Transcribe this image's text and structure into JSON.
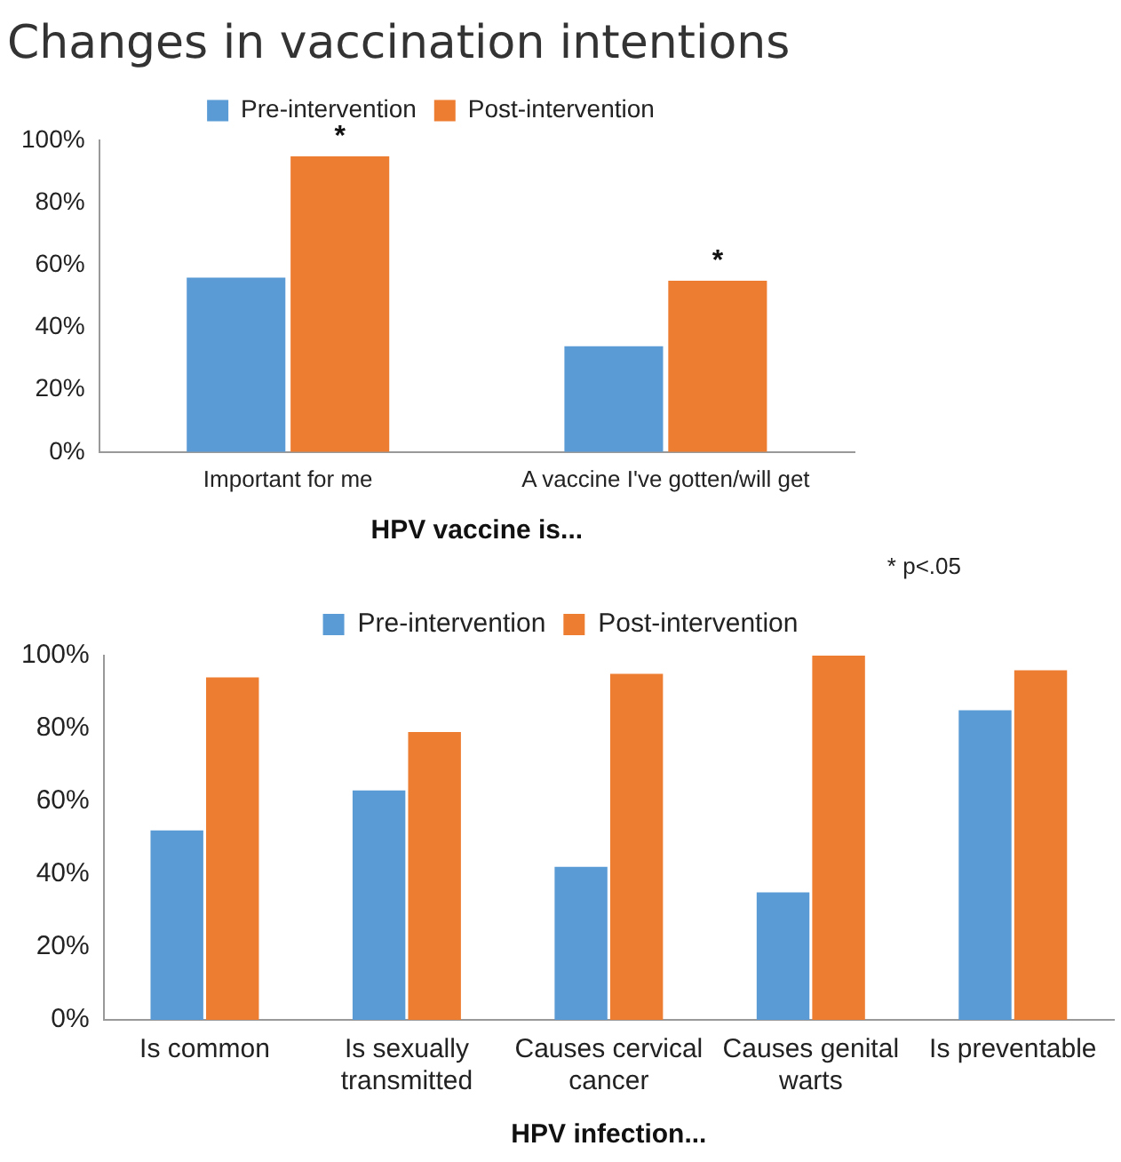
{
  "chart_data": [
    {
      "type": "bar",
      "title": "Changes in vaccination intentions",
      "xlabel": "HPV vaccine is...",
      "categories": [
        "Important for me",
        "A vaccine I've gotten/will get"
      ],
      "series": [
        {
          "name": "Pre-intervention",
          "color": "#5b9bd5",
          "values": [
            56,
            34
          ]
        },
        {
          "name": "Post-intervention",
          "color": "#ed7d31",
          "values": [
            95,
            55
          ]
        }
      ],
      "ylim": [
        0,
        100
      ],
      "yticks": [
        {
          "value": 0,
          "label": "0%"
        },
        {
          "value": 20,
          "label": "20%"
        },
        {
          "value": 40,
          "label": "40%"
        },
        {
          "value": 60,
          "label": "60%"
        },
        {
          "value": 80,
          "label": "80%"
        },
        {
          "value": 100,
          "label": "100%"
        }
      ],
      "grid": false,
      "legend": "top",
      "annotations": [
        {
          "text": "*",
          "x": "Important for me",
          "y": 95
        },
        {
          "text": "*",
          "x": "A vaccine I've gotten/will get",
          "y": 55
        },
        "* p<.05"
      ]
    },
    {
      "type": "bar",
      "xlabel": "HPV infection...",
      "categories": [
        "Is common",
        "Is sexually transmitted",
        "Causes cervical cancer",
        "Causes genital warts",
        "Is preventable"
      ],
      "series": [
        {
          "name": "Pre-intervention",
          "color": "#5b9bd5",
          "values": [
            52,
            63,
            42,
            35,
            85
          ]
        },
        {
          "name": "Post-intervention",
          "color": "#ed7d31",
          "values": [
            94,
            79,
            95,
            100,
            96
          ]
        }
      ],
      "ylim": [
        0,
        100
      ],
      "yticks": [
        {
          "value": 0,
          "label": "0%"
        },
        {
          "value": 20,
          "label": "20%"
        },
        {
          "value": 40,
          "label": "40%"
        },
        {
          "value": 60,
          "label": "60%"
        },
        {
          "value": 80,
          "label": "80%"
        },
        {
          "value": 100,
          "label": "100%"
        }
      ],
      "grid": false,
      "legend": "top"
    }
  ]
}
